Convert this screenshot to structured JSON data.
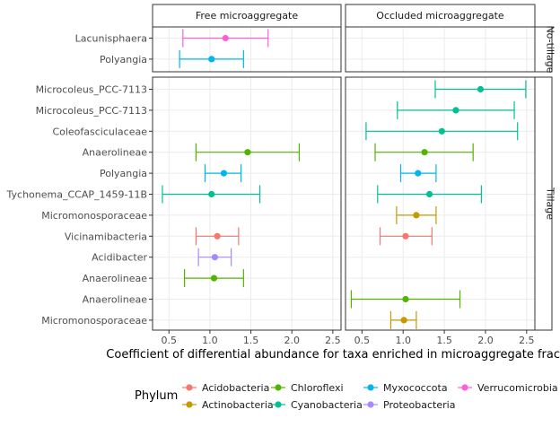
{
  "chart_data": {
    "type": "errorbar-dot",
    "x_label": "Coefficient of differential abundance for taxa enriched in microaggregate fractions",
    "xlim": [
      0.3,
      2.6
    ],
    "x_ticks": [
      0.5,
      1.0,
      1.5,
      2.0,
      2.5
    ],
    "x_tick_labels": [
      "0.5",
      "1.0",
      "1.5",
      "2.0",
      "2.5"
    ],
    "columns": [
      "Free microaggregate",
      "Occluded microaggregate"
    ],
    "rows": [
      {
        "label": "No-tillage",
        "taxa": [
          "Lacunisphaera",
          "Polyangia"
        ]
      },
      {
        "label": "Tillage",
        "taxa": [
          "Microcoleus_PCC-7113",
          "Microcoleus_PCC-7113",
          "Coleofasciculaceae",
          "Anaerolineae",
          "Polyangia",
          "Tychonema_CCAP_1459-11B",
          "Micromonosporaceae",
          "Vicinamibacteria",
          "Acidibacter",
          "Anaerolineae",
          "Anaerolineae",
          "Micromonosporaceae"
        ]
      }
    ],
    "points": [
      {
        "facet_row": 0,
        "facet_col": 0,
        "taxon_index": 0,
        "phylum": "Verrucomicrobia",
        "estimate": 1.19,
        "lower": 0.67,
        "upper": 1.71
      },
      {
        "facet_row": 0,
        "facet_col": 0,
        "taxon_index": 1,
        "phylum": "Myxococcota",
        "estimate": 1.02,
        "lower": 0.63,
        "upper": 1.41
      },
      {
        "facet_row": 1,
        "facet_col": 0,
        "taxon_index": 3,
        "phylum": "Chloroflexi",
        "estimate": 1.46,
        "lower": 0.83,
        "upper": 2.09
      },
      {
        "facet_row": 1,
        "facet_col": 0,
        "taxon_index": 4,
        "phylum": "Myxococcota",
        "estimate": 1.17,
        "lower": 0.94,
        "upper": 1.38
      },
      {
        "facet_row": 1,
        "facet_col": 0,
        "taxon_index": 5,
        "phylum": "Cyanobacteria",
        "estimate": 1.02,
        "lower": 0.42,
        "upper": 1.61
      },
      {
        "facet_row": 1,
        "facet_col": 0,
        "taxon_index": 7,
        "phylum": "Acidobacteria",
        "estimate": 1.09,
        "lower": 0.83,
        "upper": 1.35
      },
      {
        "facet_row": 1,
        "facet_col": 0,
        "taxon_index": 8,
        "phylum": "Proteobacteria",
        "estimate": 1.06,
        "lower": 0.86,
        "upper": 1.26
      },
      {
        "facet_row": 1,
        "facet_col": 0,
        "taxon_index": 9,
        "phylum": "Chloroflexi",
        "estimate": 1.05,
        "lower": 0.69,
        "upper": 1.41
      },
      {
        "facet_row": 1,
        "facet_col": 1,
        "taxon_index": 0,
        "phylum": "Cyanobacteria",
        "estimate": 1.94,
        "lower": 1.39,
        "upper": 2.49
      },
      {
        "facet_row": 1,
        "facet_col": 1,
        "taxon_index": 1,
        "phylum": "Cyanobacteria",
        "estimate": 1.64,
        "lower": 0.93,
        "upper": 2.35
      },
      {
        "facet_row": 1,
        "facet_col": 1,
        "taxon_index": 2,
        "phylum": "Cyanobacteria",
        "estimate": 1.47,
        "lower": 0.55,
        "upper": 2.39
      },
      {
        "facet_row": 1,
        "facet_col": 1,
        "taxon_index": 3,
        "phylum": "Chloroflexi",
        "estimate": 1.26,
        "lower": 0.66,
        "upper": 1.85
      },
      {
        "facet_row": 1,
        "facet_col": 1,
        "taxon_index": 4,
        "phylum": "Myxococcota",
        "estimate": 1.18,
        "lower": 0.97,
        "upper": 1.4
      },
      {
        "facet_row": 1,
        "facet_col": 1,
        "taxon_index": 5,
        "phylum": "Cyanobacteria",
        "estimate": 1.32,
        "lower": 0.69,
        "upper": 1.95
      },
      {
        "facet_row": 1,
        "facet_col": 1,
        "taxon_index": 6,
        "phylum": "Actinobacteria",
        "estimate": 1.16,
        "lower": 0.92,
        "upper": 1.4
      },
      {
        "facet_row": 1,
        "facet_col": 1,
        "taxon_index": 7,
        "phylum": "Acidobacteria",
        "estimate": 1.03,
        "lower": 0.72,
        "upper": 1.35
      },
      {
        "facet_row": 1,
        "facet_col": 1,
        "taxon_index": 10,
        "phylum": "Chloroflexi",
        "estimate": 1.03,
        "lower": 0.37,
        "upper": 1.69
      },
      {
        "facet_row": 1,
        "facet_col": 1,
        "taxon_index": 11,
        "phylum": "Actinobacteria",
        "estimate": 1.01,
        "lower": 0.85,
        "upper": 1.16
      }
    ],
    "legend": {
      "title": "Phylum",
      "position": "bottom",
      "entries": [
        {
          "name": "Acidobacteria",
          "color": "#F8766D"
        },
        {
          "name": "Actinobacteria",
          "color": "#C49A00"
        },
        {
          "name": "Chloroflexi",
          "color": "#53B400"
        },
        {
          "name": "Cyanobacteria",
          "color": "#00C094"
        },
        {
          "name": "Myxococcota",
          "color": "#00B6EB"
        },
        {
          "name": "Proteobacteria",
          "color": "#A58AFF"
        },
        {
          "name": "Verrucomicrobia",
          "color": "#FB61D7"
        }
      ]
    }
  }
}
